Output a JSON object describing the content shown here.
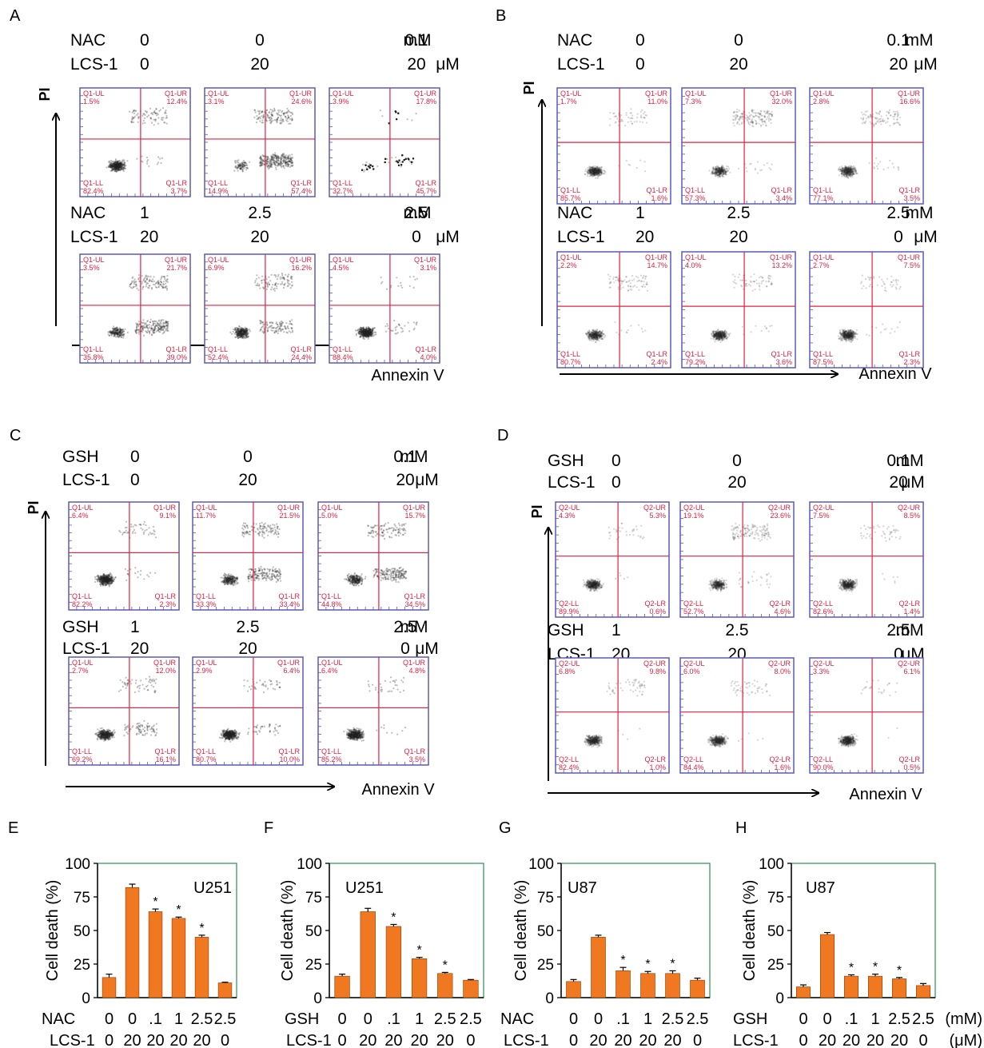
{
  "chart_data": [
    {
      "type": "scatter",
      "panel": "A",
      "channel_x": "Annexin V",
      "channel_y": "PI",
      "reagent": "NAC",
      "inhibitor": "LCS-1",
      "reagent_unit": "mM",
      "inhibitor_unit": "μM",
      "rows": [
        {
          "reagent_values": [
            "0",
            "0",
            "0.1"
          ],
          "inhibitor_values": [
            "0",
            "20",
            "20"
          ],
          "plots": [
            {
              "ul_label": "Q1-UL",
              "ul": "1.5%",
              "ur_label": "Q1-UR",
              "ur": "12.4%",
              "ll_label": "Q1-LL",
              "ll": "82.4%",
              "lr_label": "Q1-LR",
              "lr": "3.7%"
            },
            {
              "ul_label": "Q1-UL",
              "ul": "3.1%",
              "ur_label": "Q1-UR",
              "ur": "24.6%",
              "ll_label": "Q1-LL",
              "ll": "14.9%",
              "lr_label": "Q1-LR",
              "lr": "57.4%"
            },
            {
              "ul_label": "Q1-UL",
              "ul": "3.9%",
              "ur_label": "Q1-UR",
              "ur": "17.8%",
              "ll_label": "Q1-LL",
              "ll": "32.7%",
              "lr_label": "Q1-LR",
              "lr": "45.7%"
            }
          ]
        },
        {
          "reagent_values": [
            "1",
            "2.5",
            "2.5"
          ],
          "inhibitor_values": [
            "20",
            "20",
            "0"
          ],
          "plots": [
            {
              "ul_label": "Q1-UL",
              "ul": "3.5%",
              "ur_label": "Q1-UR",
              "ur": "21.7%",
              "ll_label": "Q1-LL",
              "ll": "35.8%",
              "lr_label": "Q1-LR",
              "lr": "39.0%"
            },
            {
              "ul_label": "Q1-UL",
              "ul": "6.9%",
              "ur_label": "Q1-UR",
              "ur": "16.2%",
              "ll_label": "Q1-LL",
              "ll": "52.4%",
              "lr_label": "Q1-LR",
              "lr": "24.4%"
            },
            {
              "ul_label": "Q1-UL",
              "ul": "4.5%",
              "ur_label": "Q1-UR",
              "ur": "3.1%",
              "ll_label": "Q1-LL",
              "ll": "88.4%",
              "lr_label": "Q1-LR",
              "lr": "4.0%"
            }
          ]
        }
      ]
    },
    {
      "type": "scatter",
      "panel": "B",
      "channel_x": "Annexin V",
      "channel_y": "PI",
      "reagent": "NAC",
      "inhibitor": "LCS-1",
      "reagent_unit": "mM",
      "inhibitor_unit": "μM",
      "rows": [
        {
          "reagent_values": [
            "0",
            "0",
            "0.1"
          ],
          "inhibitor_values": [
            "0",
            "20",
            "20"
          ],
          "plots": [
            {
              "ul_label": "Q1-UL",
              "ul": "1.7%",
              "ur_label": "Q1-UR",
              "ur": "11.0%",
              "ll_label": "Q1-LL",
              "ll": "85.7%",
              "lr_label": "Q1-LR",
              "lr": "1.6%"
            },
            {
              "ul_label": "Q1-UL",
              "ul": "7.3%",
              "ur_label": "Q1-UR",
              "ur": "32.0%",
              "ll_label": "Q1-LL",
              "ll": "57.3%",
              "lr_label": "Q1-LR",
              "lr": "3.4%"
            },
            {
              "ul_label": "Q1-UL",
              "ul": "2.8%",
              "ur_label": "Q1-UR",
              "ur": "16.6%",
              "ll_label": "Q1-LL",
              "ll": "77.1%",
              "lr_label": "Q1-LR",
              "lr": "3.5%"
            }
          ]
        },
        {
          "reagent_values": [
            "1",
            "2.5",
            "2.5"
          ],
          "inhibitor_values": [
            "20",
            "20",
            "0"
          ],
          "plots": [
            {
              "ul_label": "Q1-UL",
              "ul": "2.2%",
              "ur_label": "Q1-UR",
              "ur": "14.7%",
              "ll_label": "Q1-LL",
              "ll": "80.7%",
              "lr_label": "Q1-LR",
              "lr": "2.4%"
            },
            {
              "ul_label": "Q1-UL",
              "ul": "4.0%",
              "ur_label": "Q1-UR",
              "ur": "13.2%",
              "ll_label": "Q1-LL",
              "ll": "79.2%",
              "lr_label": "Q1-LR",
              "lr": "3.6%"
            },
            {
              "ul_label": "Q1-UL",
              "ul": "2.7%",
              "ur_label": "Q1-UR",
              "ur": "7.5%",
              "ll_label": "Q1-LL",
              "ll": "87.5%",
              "lr_label": "Q1-LR",
              "lr": "2.3%"
            }
          ]
        }
      ]
    },
    {
      "type": "scatter",
      "panel": "C",
      "channel_x": "Annexin V",
      "channel_y": "PI",
      "reagent": "GSH",
      "inhibitor": "LCS-1",
      "reagent_unit": "mM",
      "inhibitor_unit": "μM",
      "rows": [
        {
          "reagent_values": [
            "0",
            "0",
            "0.1"
          ],
          "inhibitor_values": [
            "0",
            "20",
            "20"
          ],
          "plots": [
            {
              "ul_label": "Q1-UL",
              "ul": "6.4%",
              "ur_label": "Q1-UR",
              "ur": "9.1%",
              "ll_label": "Q1-LL",
              "ll": "82.2%",
              "lr_label": "Q1-LR",
              "lr": "2.3%"
            },
            {
              "ul_label": "Q1-UL",
              "ul": "11.7%",
              "ur_label": "Q1-UR",
              "ur": "21.5%",
              "ll_label": "Q1-LL",
              "ll": "33.3%",
              "lr_label": "Q1-LR",
              "lr": "33.4%"
            },
            {
              "ul_label": "Q1-UL",
              "ul": "5.0%",
              "ur_label": "Q1-UR",
              "ur": "15.7%",
              "ll_label": "Q1-LL",
              "ll": "44.8%",
              "lr_label": "Q1-LR",
              "lr": "34.5%"
            }
          ]
        },
        {
          "reagent_values": [
            "1",
            "2.5",
            "2.5"
          ],
          "inhibitor_values": [
            "20",
            "20",
            "0"
          ],
          "plots": [
            {
              "ul_label": "Q1-UL",
              "ul": "2.7%",
              "ur_label": "Q1-UR",
              "ur": "12.0%",
              "ll_label": "Q1-LL",
              "ll": "69.2%",
              "lr_label": "Q1-LR",
              "lr": "16.1%"
            },
            {
              "ul_label": "Q1-UL",
              "ul": "2.9%",
              "ur_label": "Q1-UR",
              "ur": "6.4%",
              "ll_label": "Q1-LL",
              "ll": "80.7%",
              "lr_label": "Q1-LR",
              "lr": "10.0%"
            },
            {
              "ul_label": "Q1-UL",
              "ul": "6.4%",
              "ur_label": "Q1-UR",
              "ur": "4.8%",
              "ll_label": "Q1-LL",
              "ll": "85.2%",
              "lr_label": "Q1-LR",
              "lr": "3.5%"
            }
          ]
        }
      ]
    },
    {
      "type": "scatter",
      "panel": "D",
      "channel_x": "Annexin V",
      "channel_y": "PI",
      "reagent": "GSH",
      "inhibitor": "LCS-1",
      "reagent_unit": "mM",
      "inhibitor_unit": "μM",
      "rows": [
        {
          "reagent_values": [
            "0",
            "0",
            "0.1"
          ],
          "inhibitor_values": [
            "0",
            "20",
            "20"
          ],
          "plots": [
            {
              "ul_label": "Q2-UL",
              "ul": "4.3%",
              "ur_label": "Q2-UR",
              "ur": "5.3%",
              "ll_label": "Q2-LL",
              "ll": "89.9%",
              "lr_label": "Q2-LR",
              "lr": "0.6%"
            },
            {
              "ul_label": "Q2-UL",
              "ul": "19.1%",
              "ur_label": "Q2-UR",
              "ur": "23.6%",
              "ll_label": "Q2-LL",
              "ll": "52.7%",
              "lr_label": "Q2-LR",
              "lr": "4.6%"
            },
            {
              "ul_label": "Q2-UL",
              "ul": "7.5%",
              "ur_label": "Q2-UR",
              "ur": "8.5%",
              "ll_label": "Q2-LL",
              "ll": "82.6%",
              "lr_label": "Q2-LR",
              "lr": "1.4%"
            }
          ]
        },
        {
          "reagent_values": [
            "1",
            "2.5",
            "2.5"
          ],
          "inhibitor_values": [
            "20",
            "20",
            "0"
          ],
          "plots": [
            {
              "ul_label": "Q2-UL",
              "ul": "6.8%",
              "ur_label": "Q2-UR",
              "ur": "9.8%",
              "ll_label": "Q2-LL",
              "ll": "82.4%",
              "lr_label": "Q2-LR",
              "lr": "1.0%"
            },
            {
              "ul_label": "Q2-UL",
              "ul": "6.0%",
              "ur_label": "Q2-UR",
              "ur": "8.0%",
              "ll_label": "Q2-LL",
              "ll": "84.4%",
              "lr_label": "Q2-LR",
              "lr": "1.6%"
            },
            {
              "ul_label": "Q2-UL",
              "ul": "3.3%",
              "ur_label": "Q2-UR",
              "ur": "6.1%",
              "ll_label": "Q2-LL",
              "ll": "90.0%",
              "lr_label": "Q2-LR",
              "lr": "0.5%"
            }
          ]
        }
      ]
    },
    {
      "type": "bar",
      "panel": "E",
      "cell_line": "U251",
      "ylabel": "Cell death (%)",
      "ylim": [
        0,
        100
      ],
      "yticks": [
        "0",
        "25",
        "50",
        "75",
        "100"
      ],
      "reagent": "NAC",
      "inhibitor": "LCS-1",
      "reagent_values": [
        "0",
        "0",
        ".1",
        "1",
        "2.5",
        "2.5"
      ],
      "inhibitor_values": [
        "0",
        "20",
        "20",
        "20",
        "20",
        "0"
      ],
      "reagent_unit": "",
      "inhibitor_unit": "",
      "values": [
        15,
        82,
        64,
        59,
        45,
        11
      ],
      "errors": [
        2.5,
        2.5,
        2,
        1,
        1.5,
        0.5
      ],
      "significant": [
        false,
        false,
        true,
        true,
        true,
        false
      ],
      "marker": "*"
    },
    {
      "type": "bar",
      "panel": "F",
      "cell_line": "U251",
      "ylabel": "Cell death (%)",
      "ylim": [
        0,
        100
      ],
      "yticks": [
        "0",
        "25",
        "50",
        "75",
        "100"
      ],
      "reagent": "GSH",
      "inhibitor": "LCS-1",
      "reagent_values": [
        "0",
        "0",
        ".1",
        "1",
        "2.5",
        "2.5"
      ],
      "inhibitor_values": [
        "0",
        "20",
        "20",
        "20",
        "20",
        "0"
      ],
      "reagent_unit": "",
      "inhibitor_unit": "",
      "values": [
        16,
        64,
        53,
        29,
        18,
        13
      ],
      "errors": [
        1.5,
        2.5,
        1.5,
        1,
        0.8,
        0.5
      ],
      "significant": [
        false,
        false,
        true,
        true,
        true,
        false
      ],
      "marker": "*"
    },
    {
      "type": "bar",
      "panel": "G",
      "cell_line": "U87",
      "ylabel": "Cell death (%)",
      "ylim": [
        0,
        100
      ],
      "yticks": [
        "0",
        "25",
        "50",
        "75",
        "100"
      ],
      "reagent": "NAC",
      "inhibitor": "LCS-1",
      "reagent_values": [
        "0",
        "0",
        ".1",
        "1",
        "2.5",
        "2.5"
      ],
      "inhibitor_values": [
        "0",
        "20",
        "20",
        "20",
        "20",
        "0"
      ],
      "reagent_unit": "",
      "inhibitor_unit": "",
      "values": [
        12,
        45,
        20,
        18,
        18,
        13
      ],
      "errors": [
        1.5,
        1.5,
        2.5,
        1.5,
        2,
        1.5
      ],
      "significant": [
        false,
        false,
        true,
        true,
        true,
        false
      ],
      "marker": "*"
    },
    {
      "type": "bar",
      "panel": "H",
      "cell_line": "U87",
      "ylabel": "Cell death (%)",
      "ylim": [
        0,
        100
      ],
      "yticks": [
        "0",
        "25",
        "50",
        "75",
        "100"
      ],
      "reagent": "GSH",
      "inhibitor": "LCS-1",
      "reagent_values": [
        "0",
        "0",
        ".1",
        "1",
        "2.5",
        "2.5"
      ],
      "inhibitor_values": [
        "0",
        "20",
        "20",
        "20",
        "20",
        "0"
      ],
      "reagent_unit": "(mM)",
      "inhibitor_unit": "(μM)",
      "values": [
        8,
        47,
        16,
        16,
        14,
        9
      ],
      "errors": [
        1.5,
        1.5,
        1,
        1.5,
        1,
        1.5
      ],
      "significant": [
        false,
        false,
        true,
        true,
        true,
        false
      ],
      "marker": "*"
    }
  ]
}
